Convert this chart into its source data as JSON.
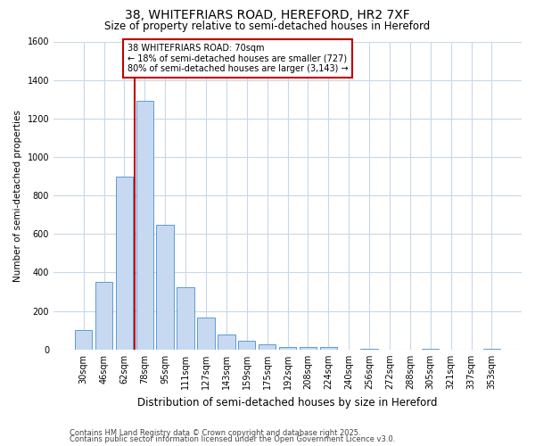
{
  "title": "38, WHITEFRIARS ROAD, HEREFORD, HR2 7XF",
  "subtitle": "Size of property relative to semi-detached houses in Hereford",
  "xlabel": "Distribution of semi-detached houses by size in Hereford",
  "ylabel": "Number of semi-detached properties",
  "categories": [
    "30sqm",
    "46sqm",
    "62sqm",
    "78sqm",
    "95sqm",
    "111sqm",
    "127sqm",
    "143sqm",
    "159sqm",
    "175sqm",
    "192sqm",
    "208sqm",
    "224sqm",
    "240sqm",
    "256sqm",
    "272sqm",
    "288sqm",
    "305sqm",
    "321sqm",
    "337sqm",
    "353sqm"
  ],
  "values": [
    100,
    350,
    900,
    1290,
    650,
    325,
    165,
    80,
    45,
    28,
    13,
    15,
    13,
    0,
    5,
    0,
    0,
    5,
    0,
    0,
    5
  ],
  "bar_color": "#c6d9f0",
  "bar_edge_color": "#5b9bd5",
  "vline_x": 2.5,
  "vline_color": "#c00000",
  "annotation_text": "38 WHITEFRIARS ROAD: 70sqm\n← 18% of semi-detached houses are smaller (727)\n80% of semi-detached houses are larger (3,143) →",
  "annotation_box_color": "#c00000",
  "ylim": [
    0,
    1600
  ],
  "yticks": [
    0,
    200,
    400,
    600,
    800,
    1000,
    1200,
    1400,
    1600
  ],
  "footer_line1": "Contains HM Land Registry data © Crown copyright and database right 2025.",
  "footer_line2": "Contains public sector information licensed under the Open Government Licence v3.0.",
  "bg_color": "#ffffff",
  "grid_color": "#c8d8e8",
  "title_fontsize": 10,
  "subtitle_fontsize": 8.5,
  "xlabel_fontsize": 8.5,
  "ylabel_fontsize": 7.5,
  "tick_fontsize": 7,
  "annotation_fontsize": 7,
  "footer_fontsize": 6
}
